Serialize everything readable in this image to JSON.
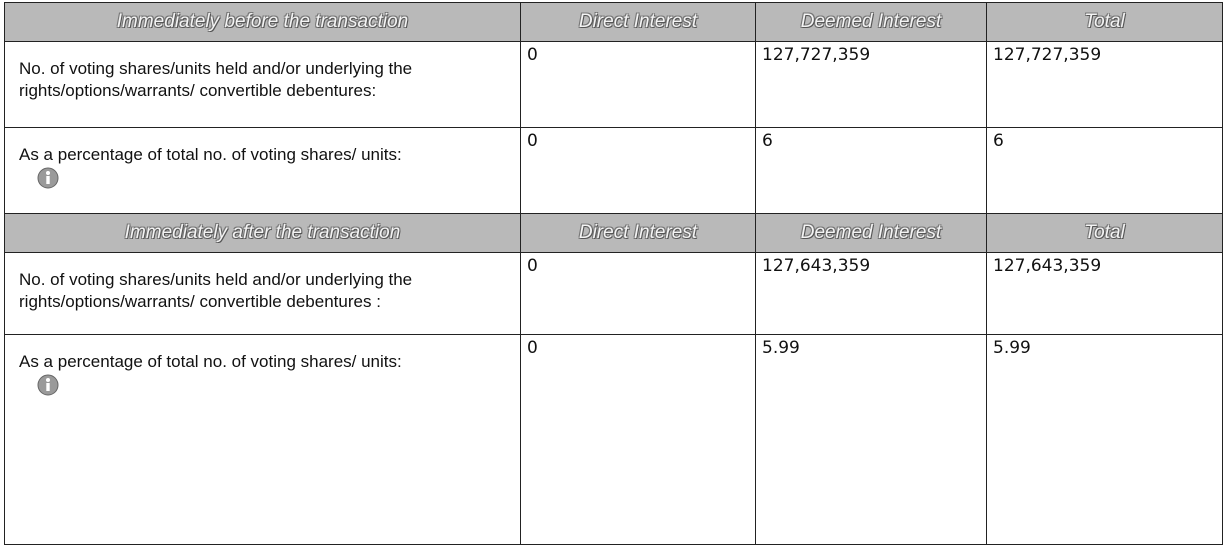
{
  "sections": [
    {
      "header": [
        "Immediately before the transaction",
        "Direct Interest",
        "Deemed Interest",
        "Total"
      ],
      "rows": [
        {
          "label": "No. of voting shares/units held and/or underlying the rights/options/warrants/ convertible debentures:",
          "cells": [
            "0",
            "127,727,359",
            "127,727,359"
          ]
        },
        {
          "label": "As a percentage of total no. of voting shares/ units:",
          "cells": [
            "0",
            "6",
            "6"
          ]
        }
      ]
    },
    {
      "header": [
        "Immediately after the transaction",
        "Direct Interest",
        "Deemed Interest",
        "Total"
      ],
      "rows": [
        {
          "label": "No. of voting shares/units held and/or underlying the rights/options/warrants/ convertible debentures :",
          "cells": [
            "0",
            "127,643,359",
            "127,643,359"
          ]
        },
        {
          "label": "As a percentage of total no. of voting shares/ units:",
          "cells": [
            "0",
            "5.99",
            "5.99"
          ]
        }
      ]
    }
  ]
}
